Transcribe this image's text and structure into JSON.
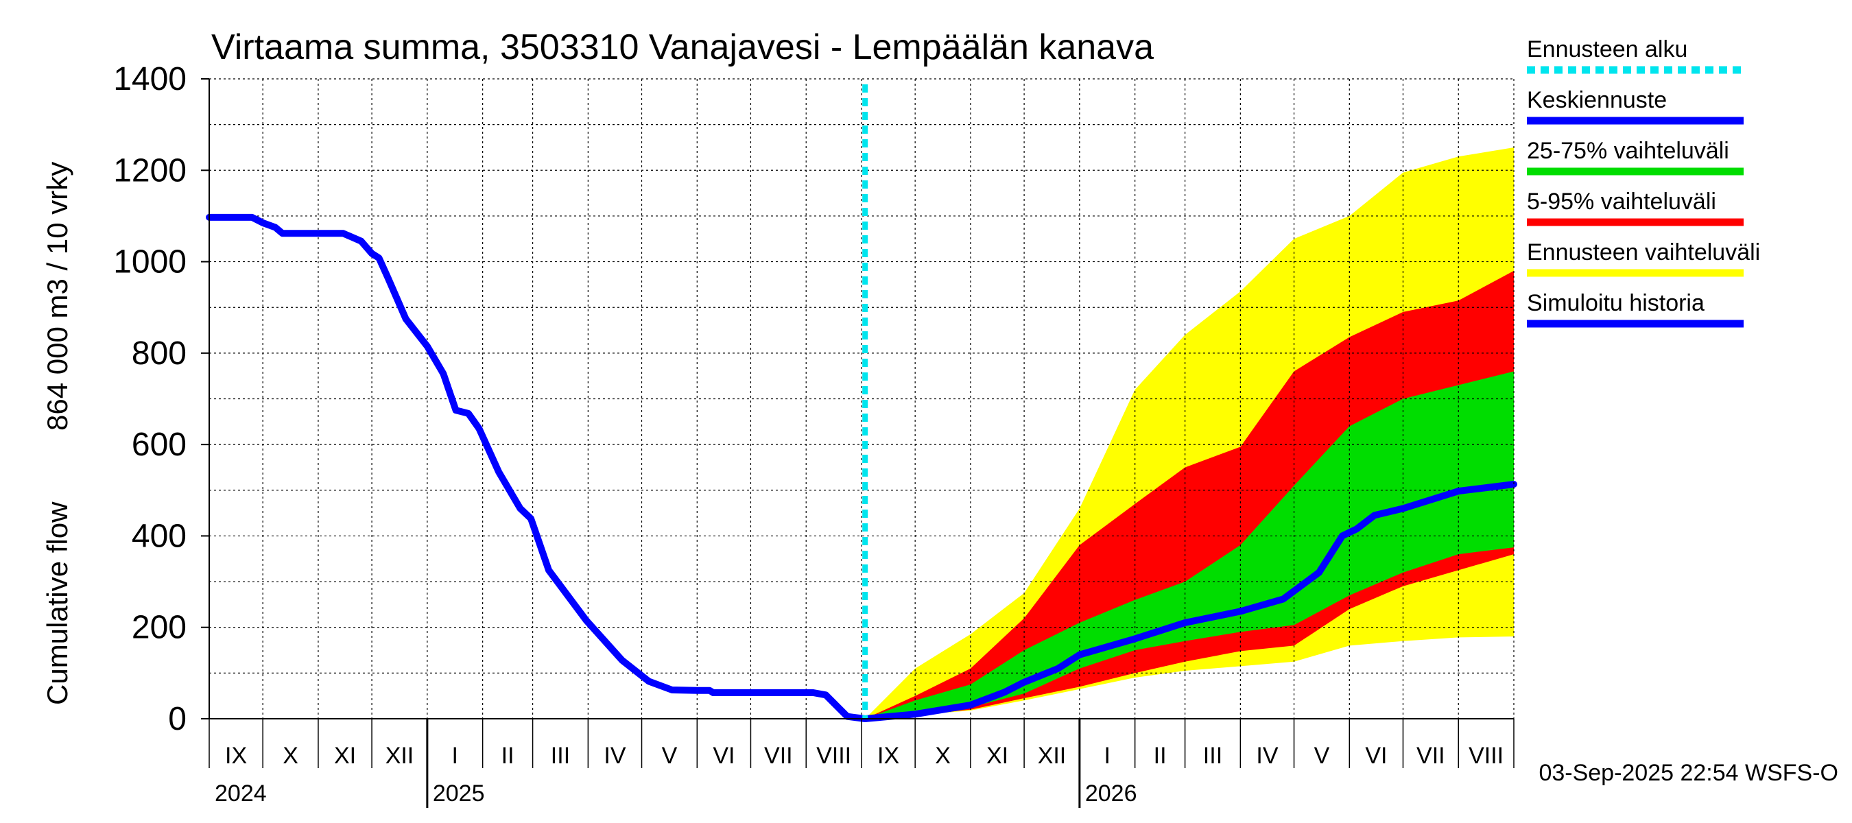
{
  "chart_data": {
    "type": "area",
    "title": "Virtaama summa, 3503310 Vanajavesi - Lempäälän kanava",
    "ylabel_line1": "Cumulative flow",
    "ylabel_line2": "864 000 m3 / 10 vrky",
    "ylim": [
      0,
      1400
    ],
    "y_ticks": [
      0,
      200,
      400,
      600,
      800,
      1000,
      1200,
      1400
    ],
    "x_range": [
      "2024-09-01",
      "2026-09-01"
    ],
    "grid": true,
    "legend_position": "right",
    "month_labels": [
      {
        "label": "IX",
        "start": "2024-09-01",
        "end": "2024-10-01"
      },
      {
        "label": "X",
        "start": "2024-10-01",
        "end": "2024-11-01"
      },
      {
        "label": "XI",
        "start": "2024-11-01",
        "end": "2024-12-01"
      },
      {
        "label": "XII",
        "start": "2024-12-01",
        "end": "2025-01-01"
      },
      {
        "label": "I",
        "start": "2025-01-01",
        "end": "2025-02-01"
      },
      {
        "label": "II",
        "start": "2025-02-01",
        "end": "2025-03-01"
      },
      {
        "label": "III",
        "start": "2025-03-01",
        "end": "2025-04-01"
      },
      {
        "label": "IV",
        "start": "2025-04-01",
        "end": "2025-05-01"
      },
      {
        "label": "V",
        "start": "2025-05-01",
        "end": "2025-06-01"
      },
      {
        "label": "VI",
        "start": "2025-06-01",
        "end": "2025-07-01"
      },
      {
        "label": "VII",
        "start": "2025-07-01",
        "end": "2025-08-01"
      },
      {
        "label": "VIII",
        "start": "2025-08-01",
        "end": "2025-09-01"
      },
      {
        "label": "IX",
        "start": "2025-09-01",
        "end": "2025-10-01"
      },
      {
        "label": "X",
        "start": "2025-10-01",
        "end": "2025-11-01"
      },
      {
        "label": "XI",
        "start": "2025-11-01",
        "end": "2025-12-01"
      },
      {
        "label": "XII",
        "start": "2025-12-01",
        "end": "2026-01-01"
      },
      {
        "label": "I",
        "start": "2026-01-01",
        "end": "2026-02-01"
      },
      {
        "label": "II",
        "start": "2026-02-01",
        "end": "2026-03-01"
      },
      {
        "label": "III",
        "start": "2026-03-01",
        "end": "2026-04-01"
      },
      {
        "label": "IV",
        "start": "2026-04-01",
        "end": "2026-05-01"
      },
      {
        "label": "V",
        "start": "2026-05-01",
        "end": "2026-06-01"
      },
      {
        "label": "VI",
        "start": "2026-06-01",
        "end": "2026-07-01"
      },
      {
        "label": "VII",
        "start": "2026-07-01",
        "end": "2026-08-01"
      },
      {
        "label": "VIII",
        "start": "2026-08-01",
        "end": "2026-09-01"
      }
    ],
    "year_labels": [
      {
        "label": "2024",
        "date": "2024-09-01"
      },
      {
        "label": "2025",
        "date": "2025-01-01"
      },
      {
        "label": "2026",
        "date": "2026-01-01"
      }
    ],
    "forecast_start": "2025-09-03",
    "timestamp": "03-Sep-2025 22:54 WSFS-O",
    "legend": [
      {
        "label": "Ennusteen alku",
        "color": "#00e5ee",
        "style": "dashed"
      },
      {
        "label": "Keskiennuste",
        "color": "#0000ff",
        "style": "solid"
      },
      {
        "label": "25-75% vaihteluväli",
        "color": "#00dd00",
        "style": "solid"
      },
      {
        "label": "5-95% vaihteluväli",
        "color": "#ff0000",
        "style": "solid"
      },
      {
        "label": "Ennusteen vaihteluväli",
        "color": "#ffff00",
        "style": "solid"
      },
      {
        "label": "Simuloitu historia",
        "color": "#0000ff",
        "style": "solid"
      }
    ],
    "series": [
      {
        "name": "Simuloitu historia",
        "color": "#0000ff",
        "points": [
          [
            "2024-09-01",
            1097
          ],
          [
            "2024-09-25",
            1097
          ],
          [
            "2024-10-01",
            1085
          ],
          [
            "2024-10-08",
            1075
          ],
          [
            "2024-10-12",
            1062
          ],
          [
            "2024-11-01",
            1062
          ],
          [
            "2024-11-15",
            1062
          ],
          [
            "2024-11-25",
            1045
          ],
          [
            "2024-12-01",
            1018
          ],
          [
            "2024-12-05",
            1008
          ],
          [
            "2024-12-10",
            965
          ],
          [
            "2024-12-20",
            875
          ],
          [
            "2025-01-01",
            815
          ],
          [
            "2025-01-10",
            755
          ],
          [
            "2025-01-17",
            675
          ],
          [
            "2025-01-24",
            668
          ],
          [
            "2025-01-30",
            635
          ],
          [
            "2025-02-10",
            540
          ],
          [
            "2025-02-22",
            460
          ],
          [
            "2025-02-28",
            438
          ],
          [
            "2025-03-10",
            325
          ],
          [
            "2025-03-31",
            215
          ],
          [
            "2025-04-20",
            128
          ],
          [
            "2025-05-05",
            82
          ],
          [
            "2025-05-18",
            63
          ],
          [
            "2025-06-01",
            62
          ],
          [
            "2025-06-08",
            62
          ],
          [
            "2025-06-10",
            57
          ],
          [
            "2025-07-01",
            57
          ],
          [
            "2025-08-05",
            57
          ],
          [
            "2025-08-12",
            52
          ],
          [
            "2025-08-24",
            5
          ],
          [
            "2025-08-30",
            2
          ],
          [
            "2025-09-03",
            0
          ]
        ]
      },
      {
        "name": "Keskiennuste",
        "color": "#0000ff",
        "points": [
          [
            "2025-09-03",
            0
          ],
          [
            "2025-10-01",
            10
          ],
          [
            "2025-11-01",
            30
          ],
          [
            "2025-11-20",
            58
          ],
          [
            "2025-12-01",
            80
          ],
          [
            "2025-12-20",
            110
          ],
          [
            "2026-01-01",
            140
          ],
          [
            "2026-02-01",
            175
          ],
          [
            "2026-03-01",
            210
          ],
          [
            "2026-04-01",
            235
          ],
          [
            "2026-04-25",
            262
          ],
          [
            "2026-05-15",
            320
          ],
          [
            "2026-05-28",
            400
          ],
          [
            "2026-06-05",
            415
          ],
          [
            "2026-06-15",
            445
          ],
          [
            "2026-07-01",
            460
          ],
          [
            "2026-08-01",
            498
          ],
          [
            "2026-09-01",
            513
          ]
        ]
      }
    ],
    "bands": [
      {
        "name": "Ennusteen vaihteluväli",
        "color": "#ffff00",
        "points": [
          [
            "2025-09-03",
            0,
            0
          ],
          [
            "2025-10-01",
            8,
            110
          ],
          [
            "2025-11-01",
            18,
            185
          ],
          [
            "2025-12-01",
            40,
            275
          ],
          [
            "2026-01-01",
            65,
            460
          ],
          [
            "2026-02-01",
            90,
            720
          ],
          [
            "2026-03-01",
            105,
            840
          ],
          [
            "2026-04-01",
            115,
            935
          ],
          [
            "2026-05-01",
            125,
            1050
          ],
          [
            "2026-06-01",
            160,
            1100
          ],
          [
            "2026-07-01",
            170,
            1195
          ],
          [
            "2026-08-01",
            178,
            1230
          ],
          [
            "2026-09-01",
            180,
            1250
          ]
        ]
      },
      {
        "name": "5-95% vaihteluväli",
        "color": "#ff0000",
        "points": [
          [
            "2025-09-03",
            0,
            0
          ],
          [
            "2025-10-01",
            8,
            50
          ],
          [
            "2025-11-01",
            20,
            110
          ],
          [
            "2025-12-01",
            45,
            220
          ],
          [
            "2026-01-01",
            70,
            380
          ],
          [
            "2026-02-01",
            100,
            470
          ],
          [
            "2026-03-01",
            125,
            550
          ],
          [
            "2026-04-01",
            148,
            595
          ],
          [
            "2026-05-01",
            160,
            760
          ],
          [
            "2026-06-01",
            240,
            835
          ],
          [
            "2026-07-01",
            290,
            890
          ],
          [
            "2026-08-01",
            325,
            915
          ],
          [
            "2026-09-01",
            360,
            980
          ]
        ]
      },
      {
        "name": "25-75% vaihteluväli",
        "color": "#00dd00",
        "points": [
          [
            "2025-09-03",
            0,
            0
          ],
          [
            "2025-10-01",
            10,
            40
          ],
          [
            "2025-11-01",
            25,
            75
          ],
          [
            "2025-12-01",
            55,
            150
          ],
          [
            "2026-01-01",
            110,
            210
          ],
          [
            "2026-02-01",
            150,
            260
          ],
          [
            "2026-03-01",
            170,
            300
          ],
          [
            "2026-04-01",
            190,
            380
          ],
          [
            "2026-05-01",
            205,
            510
          ],
          [
            "2026-06-01",
            270,
            640
          ],
          [
            "2026-07-01",
            320,
            700
          ],
          [
            "2026-08-01",
            360,
            730
          ],
          [
            "2026-09-01",
            375,
            760
          ]
        ]
      }
    ]
  }
}
